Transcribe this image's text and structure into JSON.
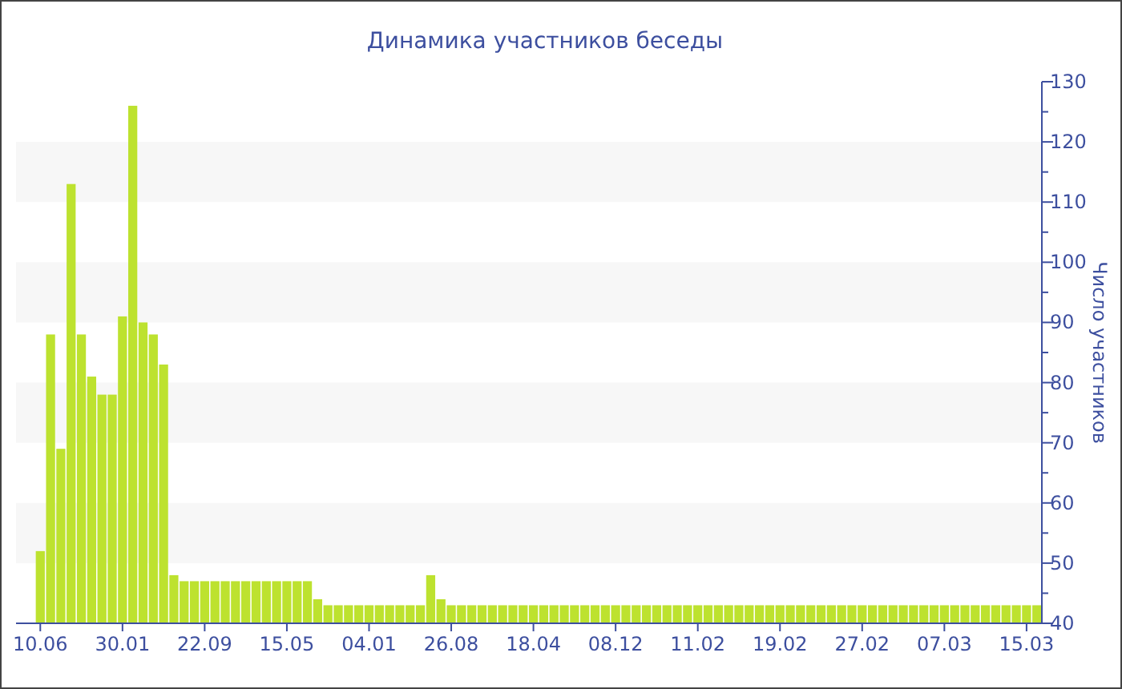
{
  "chart_data": {
    "type": "bar",
    "title": "Динамика участников беседы",
    "ylabel": "Число участников",
    "categories": [
      "10.06",
      null,
      null,
      null,
      null,
      null,
      null,
      null,
      "30.01",
      null,
      null,
      null,
      null,
      null,
      null,
      null,
      "22.09",
      null,
      null,
      null,
      null,
      null,
      null,
      null,
      "15.05",
      null,
      null,
      null,
      null,
      null,
      null,
      null,
      "04.01",
      null,
      null,
      null,
      null,
      null,
      null,
      null,
      "26.08",
      null,
      null,
      null,
      null,
      null,
      null,
      null,
      "18.04",
      null,
      null,
      null,
      null,
      null,
      null,
      null,
      "08.12",
      null,
      null,
      null,
      null,
      null,
      null,
      null,
      "11.02",
      null,
      null,
      null,
      null,
      null,
      null,
      null,
      "19.02",
      null,
      null,
      null,
      null,
      null,
      null,
      null,
      "27.02",
      null,
      null,
      null,
      null,
      null,
      null,
      null,
      "07.03",
      null,
      null,
      null,
      null,
      null,
      null,
      null,
      "15.03",
      null
    ],
    "values": [
      52,
      88,
      69,
      113,
      88,
      81,
      78,
      78,
      91,
      126,
      90,
      88,
      83,
      48,
      47,
      47,
      47,
      47,
      47,
      47,
      47,
      47,
      47,
      47,
      47,
      47,
      47,
      44,
      43,
      43,
      43,
      43,
      43,
      43,
      43,
      43,
      43,
      43,
      48,
      44,
      43,
      43,
      43,
      43,
      43,
      43,
      43,
      43,
      43,
      43,
      43,
      43,
      43,
      43,
      43,
      43,
      43,
      43,
      43,
      43,
      43,
      43,
      43,
      43,
      43,
      43,
      43,
      43,
      43,
      43,
      43,
      43,
      43,
      43,
      43,
      43,
      43,
      43,
      43,
      43,
      43,
      43,
      43,
      43,
      43,
      43,
      43,
      43,
      43,
      43,
      43,
      43,
      43,
      43,
      43,
      43,
      43,
      43
    ],
    "color": "#bde22f",
    "ylim": [
      40,
      130
    ],
    "yticks": [
      40,
      50,
      60,
      70,
      80,
      90,
      100,
      110,
      120,
      130
    ],
    "bands": [
      {
        "axis": "y",
        "from": 50,
        "to": 60,
        "color": "#f7f7f7"
      },
      {
        "axis": "y",
        "from": 70,
        "to": 80,
        "color": "#f7f7f7"
      },
      {
        "axis": "y",
        "from": 90,
        "to": 100,
        "color": "#f7f7f7"
      },
      {
        "axis": "y",
        "from": 110,
        "to": 120,
        "color": "#f7f7f7"
      }
    ]
  }
}
